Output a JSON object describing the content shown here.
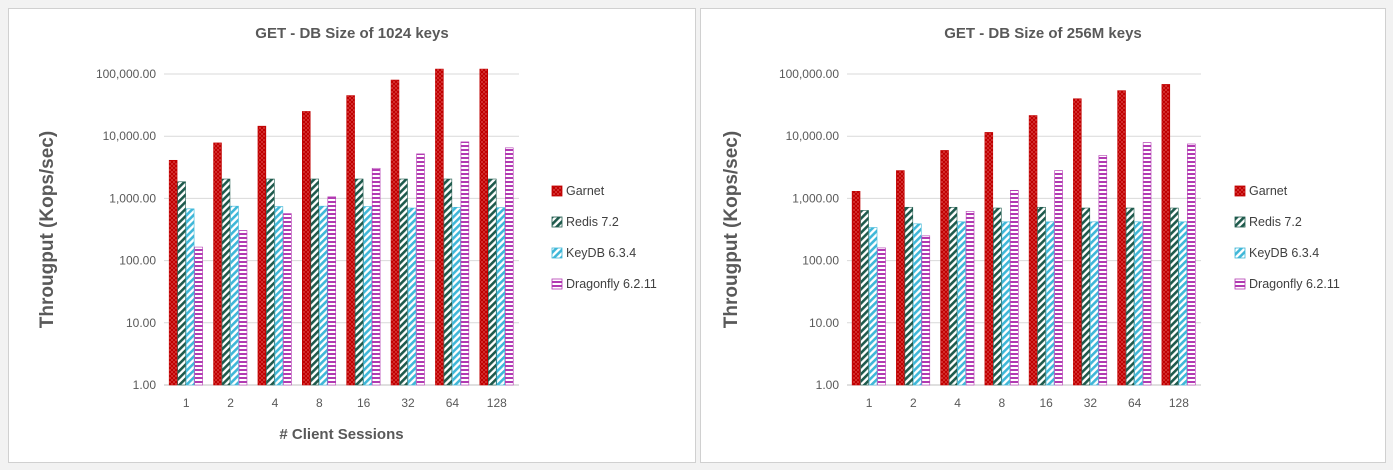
{
  "chart_data": [
    {
      "type": "bar",
      "title": "GET - DB Size of 1024 keys",
      "xlabel": "# Client Sessions",
      "ylabel": "Througput (Kops/sec)",
      "yscale": "log",
      "ylim": [
        1,
        100000
      ],
      "yticks": [
        "1.00",
        "10.00",
        "100.00",
        "1,000.00",
        "10,000.00",
        "100,000.00"
      ],
      "categories": [
        "1",
        "2",
        "4",
        "8",
        "16",
        "32",
        "64",
        "128"
      ],
      "legend_position": "right",
      "series": [
        {
          "name": "Garnet",
          "values": [
            4100,
            7800,
            14500,
            25000,
            45000,
            80000,
            120000,
            120000
          ]
        },
        {
          "name": "Redis 7.2",
          "values": [
            1850,
            2050,
            2050,
            2050,
            2050,
            2050,
            2050,
            2050
          ]
        },
        {
          "name": "KeyDB 6.3.4",
          "values": [
            680,
            750,
            740,
            750,
            740,
            700,
            720,
            710
          ]
        },
        {
          "name": "Dragonfly 6.2.11",
          "values": [
            165,
            305,
            570,
            1060,
            3050,
            5200,
            8100,
            6500
          ]
        }
      ]
    },
    {
      "type": "bar",
      "title": "GET - DB Size of 256M keys",
      "xlabel": "",
      "ylabel": "Througput (Kops/sec)",
      "yscale": "log",
      "ylim": [
        1,
        100000
      ],
      "yticks": [
        "1.00",
        "10.00",
        "100.00",
        "1,000.00",
        "10,000.00",
        "100,000.00"
      ],
      "categories": [
        "1",
        "2",
        "4",
        "8",
        "16",
        "32",
        "64",
        "128"
      ],
      "legend_position": "right",
      "series": [
        {
          "name": "Garnet",
          "values": [
            1300,
            2800,
            5900,
            11500,
            21500,
            40000,
            54000,
            68000
          ]
        },
        {
          "name": "Redis 7.2",
          "values": [
            640,
            720,
            720,
            700,
            720,
            700,
            700,
            700
          ]
        },
        {
          "name": "KeyDB 6.3.4",
          "values": [
            340,
            390,
            420,
            420,
            420,
            420,
            420,
            420
          ]
        },
        {
          "name": "Dragonfly 6.2.11",
          "values": [
            160,
            250,
            620,
            1350,
            2800,
            4900,
            7900,
            7500
          ]
        }
      ]
    }
  ],
  "styles": {
    "series_colors": [
      "#c00000",
      "#1e5a4c",
      "#3fb7d8",
      "#b23ab2"
    ],
    "series_patterns": [
      "dots",
      "diagonal",
      "diagonal",
      "horizontal"
    ],
    "gridline": "#d9d9d9",
    "axis": "#bfbfbf"
  }
}
